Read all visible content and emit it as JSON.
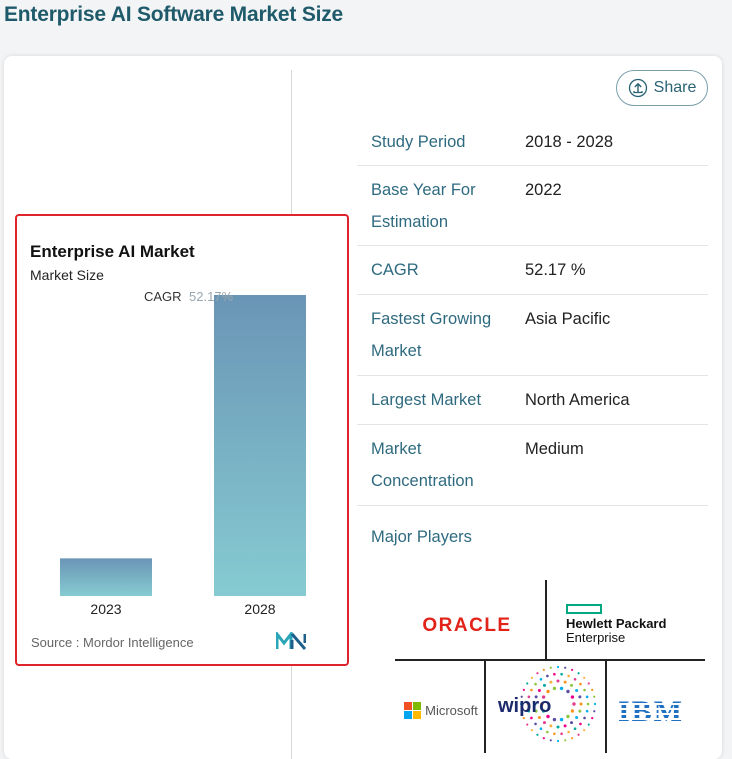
{
  "page": {
    "heading": "Enterprise AI Software Market Size",
    "share_label": "Share"
  },
  "chart_data": {
    "type": "bar",
    "title": "Enterprise AI Market",
    "subtitle": "Market Size",
    "categories": [
      "2023",
      "2028"
    ],
    "values": [
      12.5,
      100
    ],
    "ylim": [
      0,
      100
    ],
    "annotation": "CAGR 52.17%",
    "annotation_label": "CAGR",
    "annotation_value": "52.17%",
    "source": "Source : Mordor Intelligence",
    "bar_color_top": "#6a95b6",
    "bar_color_bottom": "#86cbd1",
    "grid": false
  },
  "info": {
    "rows": [
      {
        "key_lines": [
          "Study Period"
        ],
        "value": "2018 - 2028"
      },
      {
        "key_lines": [
          "Base Year For",
          "Estimation"
        ],
        "value": "2022"
      },
      {
        "key_lines": [
          "CAGR"
        ],
        "value": "52.17 %"
      },
      {
        "key_lines": [
          "Fastest Growing",
          "Market"
        ],
        "value": "Asia Pacific"
      },
      {
        "key_lines": [
          "Largest Market"
        ],
        "value": "North America"
      },
      {
        "key_lines": [
          "Market",
          "Concentration"
        ],
        "value": "Medium"
      }
    ],
    "major_players_label": "Major Players"
  },
  "players": {
    "oracle": "ORACLE",
    "hpe_line1": "Hewlett Packard",
    "hpe_line2": "Enterprise",
    "microsoft": "Microsoft",
    "wipro": "wipro",
    "ibm": "IBM"
  },
  "colors": {
    "accent": "#2e6a7f",
    "highlight_frame": "#e0242b",
    "oracle": "#e2231a",
    "hpe": "#01a982",
    "ibm": "#1f70c1"
  }
}
